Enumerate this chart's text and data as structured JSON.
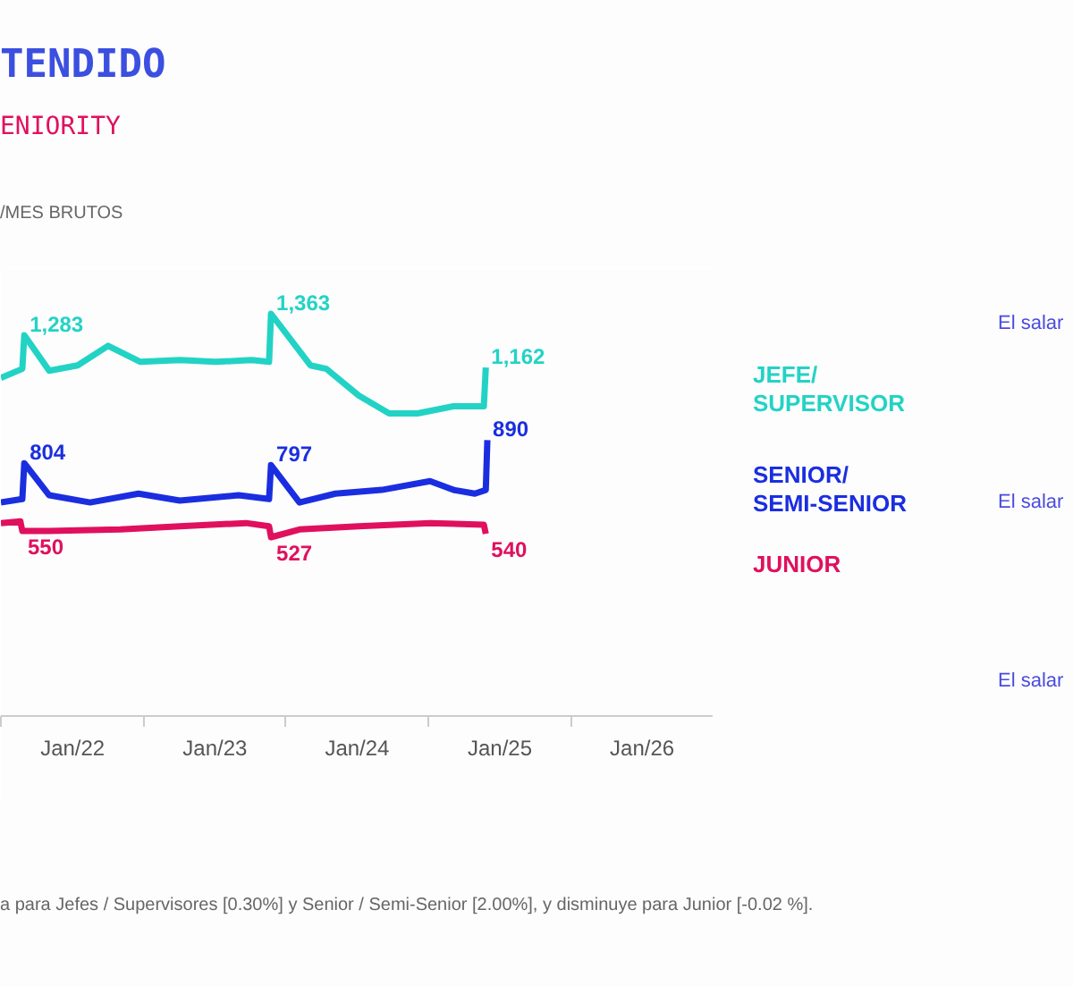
{
  "chart_data": {
    "type": "line",
    "title": "TENDIDO",
    "subtitle": "ENIORITY",
    "annotations": [
      "/MES BRUTOS",
      "El salar",
      "El salar",
      "El salar",
      "a para Jefes / Supervisores [0.30%] y Senior / Semi-Senior [2.00%], y disminuye para Junior [-0.02 %]."
    ],
    "xlim": [
      "2021-07-01",
      "2026-07-01"
    ],
    "xticks": [
      {
        "value": "2022-01-01",
        "label": "Jan/22"
      },
      {
        "value": "2023-01-01",
        "label": "Jan/23"
      },
      {
        "value": "2024-01-01",
        "label": "Jan/24"
      },
      {
        "value": "2025-01-01",
        "label": "Jan/25"
      },
      {
        "value": "2026-01-01",
        "label": "Jan/26"
      }
    ],
    "tick_labels": "x",
    "marker": "none",
    "line_style": "solid",
    "series": [
      {
        "name": "JEFE/\nSUPERVISOR",
        "color": "#22d3c5",
        "x": [
          "2021-07-01",
          "2021-08-25",
          "2021-08-30",
          "2021-11-02",
          "2022-01-14",
          "2022-04-02",
          "2022-06-24",
          "2022-10-03",
          "2023-01-03",
          "2023-04-05",
          "2023-05-20",
          "2023-05-25",
          "2023-09-03",
          "2023-10-14",
          "2024-01-05",
          "2024-03-23",
          "2024-06-04",
          "2024-09-04",
          "2024-11-21",
          "2024-11-26"
        ],
        "values": [
          1123,
          1157,
          1283,
          1150,
          1170,
          1243,
          1183,
          1190,
          1183,
          1190,
          1183,
          1363,
          1170,
          1157,
          1057,
          990,
          990,
          1017,
          1017,
          1162
        ],
        "value_labels": [
          null,
          null,
          "1,283",
          null,
          null,
          null,
          null,
          null,
          null,
          null,
          null,
          "1,363",
          null,
          null,
          null,
          null,
          null,
          null,
          null,
          "1,162"
        ]
      },
      {
        "name": "SENIOR/\nSEMI-SENIOR",
        "color": "#1a2ee0",
        "x": [
          "2021-07-01",
          "2021-08-25",
          "2021-08-30",
          "2021-11-02",
          "2022-02-15",
          "2022-06-19",
          "2022-10-03",
          "2023-03-03",
          "2023-05-20",
          "2023-05-25",
          "2023-08-06",
          "2023-11-06",
          "2024-03-04",
          "2024-07-06",
          "2024-09-04",
          "2024-10-29",
          "2024-11-26",
          "2024-11-30"
        ],
        "values": [
          657,
          670,
          804,
          684,
          657,
          690,
          664,
          684,
          670,
          797,
          657,
          690,
          704,
          737,
          704,
          690,
          704,
          890
        ],
        "value_labels": [
          null,
          null,
          "804",
          null,
          null,
          null,
          null,
          null,
          null,
          "797",
          null,
          null,
          null,
          null,
          null,
          null,
          null,
          "890"
        ]
      },
      {
        "name": "JUNIOR",
        "color": "#e0105e",
        "x": [
          "2021-07-01",
          "2021-08-20",
          "2021-08-25",
          "2021-11-02",
          "2022-05-04",
          "2022-10-03",
          "2023-03-22",
          "2023-05-20",
          "2023-05-25",
          "2023-08-06",
          "2024-01-05",
          "2024-07-06",
          "2024-11-21",
          "2024-11-26"
        ],
        "values": [
          580,
          586,
          550,
          550,
          556,
          568,
          580,
          568,
          527,
          556,
          568,
          580,
          574,
          540
        ],
        "value_labels": [
          null,
          null,
          "550",
          null,
          null,
          null,
          null,
          null,
          "527",
          null,
          null,
          null,
          null,
          "540"
        ]
      }
    ]
  }
}
